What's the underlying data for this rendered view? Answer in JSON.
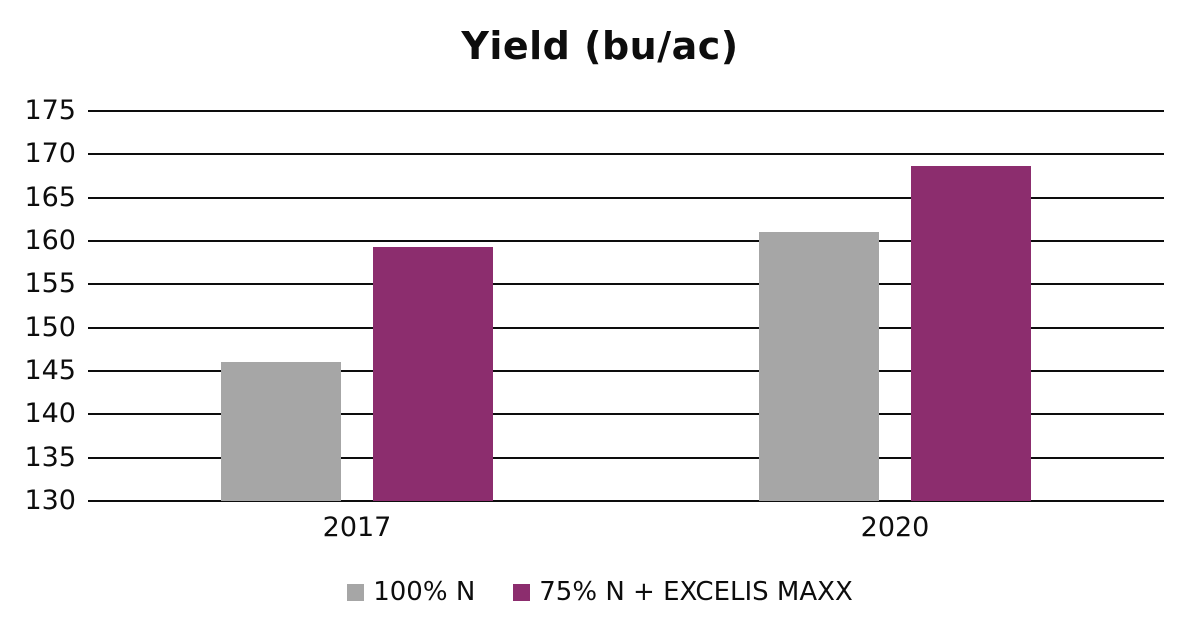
{
  "chart_data": {
    "type": "bar",
    "title": "Yield (bu/ac)",
    "categories": [
      "2017",
      "2020"
    ],
    "series": [
      {
        "name": "100% N",
        "color": "#A6A6A6",
        "values": [
          146,
          161
        ]
      },
      {
        "name": "75% N + EXCELIS MAXX",
        "color": "#8C2D6E",
        "values": [
          159.3,
          168.7
        ]
      }
    ],
    "ylim": [
      130,
      175
    ],
    "yticks": [
      130,
      135,
      140,
      145,
      150,
      155,
      160,
      165,
      170,
      175
    ],
    "ytick_step": 5,
    "xlabel": "",
    "ylabel": "",
    "grid": true,
    "gridline_color": "#0d0d0d",
    "background_color": "#FFFFFF",
    "legend_position": "bottom"
  }
}
